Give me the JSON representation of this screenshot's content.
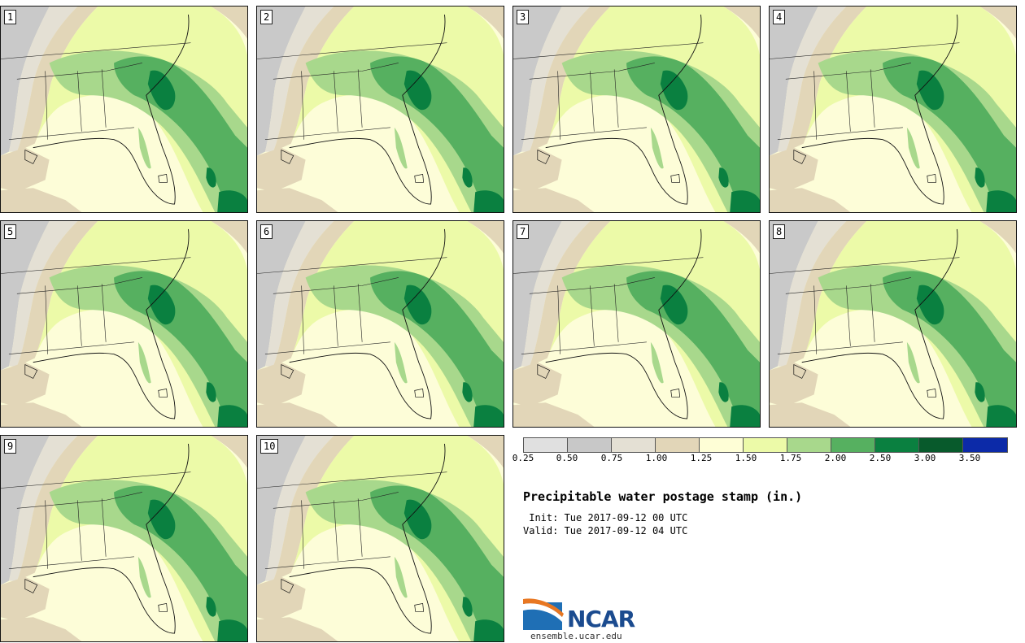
{
  "panels": [
    {
      "id": "1",
      "label": "1"
    },
    {
      "id": "2",
      "label": "2"
    },
    {
      "id": "3",
      "label": "3"
    },
    {
      "id": "4",
      "label": "4"
    },
    {
      "id": "5",
      "label": "5"
    },
    {
      "id": "6",
      "label": "6"
    },
    {
      "id": "7",
      "label": "7"
    },
    {
      "id": "8",
      "label": "8"
    },
    {
      "id": "9",
      "label": "9"
    },
    {
      "id": "10",
      "label": "10"
    }
  ],
  "colorbar": {
    "colors": [
      "#e0e0e0",
      "#c8c8c8",
      "#e4e0d4",
      "#e2d6b8",
      "#fefed6",
      "#ecfaa8",
      "#a8d88c",
      "#56b060",
      "#0a8040",
      "#085a2c",
      "#0c2aa8"
    ],
    "ticks": [
      "0.25",
      "0.50",
      "0.75",
      "1.00",
      "1.25",
      "1.50",
      "1.75",
      "2.00",
      "2.50",
      "3.00",
      "3.50"
    ]
  },
  "title": "Precipitable water postage stamp (in.)",
  "init": " Init: Tue 2017-09-12 00 UTC",
  "valid": "Valid: Tue 2017-09-12 04 UTC",
  "logo": {
    "name": "NCAR",
    "url": "ensemble.ucar.edu"
  }
}
